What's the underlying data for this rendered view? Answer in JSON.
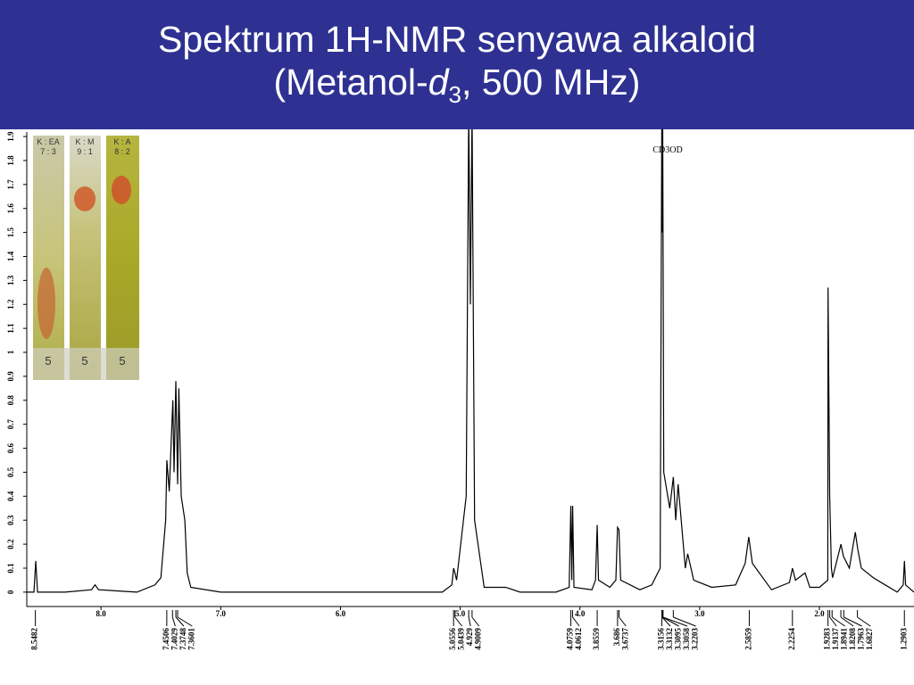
{
  "header": {
    "title_line1": "Spektrum 1H-NMR senyawa alkaloid",
    "title_line2_before": "(Metanol-",
    "title_line2_italic": "d",
    "title_line2_sub": "3",
    "title_line2_after": ", 500 MHz)"
  },
  "tlc": {
    "strips": [
      {
        "eluent": "K : EA",
        "ratio": "7 : 3",
        "number": "5"
      },
      {
        "eluent": "K : M",
        "ratio": "9 : 1",
        "number": "5"
      },
      {
        "eluent": "K : A",
        "ratio": "8 : 2",
        "number": "5"
      }
    ]
  },
  "chart_data": {
    "type": "line",
    "annotation": "CD3OD",
    "x": [
      8.62,
      8.56,
      8.545,
      8.53,
      8.3,
      8.08,
      8.05,
      8.02,
      7.7,
      7.55,
      7.5,
      7.46,
      7.45,
      7.43,
      7.4,
      7.39,
      7.375,
      7.36,
      7.35,
      7.33,
      7.3,
      7.28,
      7.25,
      7.0,
      6.5,
      6.0,
      5.5,
      5.15,
      5.07,
      5.055,
      5.044,
      5.03,
      4.95,
      4.929,
      4.915,
      4.901,
      4.88,
      4.8,
      4.62,
      4.5,
      4.2,
      4.09,
      4.076,
      4.068,
      4.061,
      4.05,
      3.9,
      3.87,
      3.856,
      3.845,
      3.75,
      3.7,
      3.686,
      3.674,
      3.66,
      3.5,
      3.4,
      3.33,
      3.316,
      3.313,
      3.309,
      3.3,
      3.25,
      3.22,
      3.2,
      3.18,
      3.12,
      3.1,
      3.05,
      2.9,
      2.7,
      2.62,
      2.59,
      2.56,
      2.4,
      2.25,
      2.225,
      2.2,
      2.12,
      2.08,
      2.0,
      1.93,
      1.928,
      1.914,
      1.9,
      1.89,
      1.82,
      1.8,
      1.75,
      1.7,
      1.68,
      1.65,
      1.55,
      1.45,
      1.35,
      1.3,
      1.29,
      1.28,
      1.21
    ],
    "series": [
      {
        "color": "#000000",
        "values": [
          0.0,
          0.0,
          0.13,
          0.0,
          0.0,
          0.01,
          0.03,
          0.01,
          0.0,
          0.03,
          0.06,
          0.3,
          0.55,
          0.42,
          0.8,
          0.5,
          0.88,
          0.45,
          0.85,
          0.4,
          0.3,
          0.08,
          0.02,
          0.0,
          0.0,
          0.0,
          0.0,
          0.0,
          0.03,
          0.1,
          0.08,
          0.05,
          0.4,
          2.0,
          1.2,
          2.0,
          0.3,
          0.02,
          0.02,
          0.0,
          0.0,
          0.02,
          0.36,
          0.05,
          0.36,
          0.02,
          0.01,
          0.05,
          0.28,
          0.05,
          0.02,
          0.05,
          0.27,
          0.26,
          0.05,
          0.01,
          0.03,
          0.1,
          2.0,
          1.5,
          2.0,
          0.5,
          0.35,
          0.48,
          0.3,
          0.45,
          0.1,
          0.16,
          0.05,
          0.02,
          0.03,
          0.12,
          0.23,
          0.12,
          0.01,
          0.04,
          0.1,
          0.05,
          0.08,
          0.02,
          0.02,
          0.05,
          1.27,
          0.4,
          0.1,
          0.06,
          0.2,
          0.15,
          0.1,
          0.25,
          0.18,
          0.1,
          0.06,
          0.03,
          0.0,
          0.03,
          0.13,
          0.03,
          0.0
        ]
      }
    ],
    "xlim": [
      8.62,
      1.21
    ],
    "xticks": [
      {
        "value": 8,
        "label": "8.0"
      },
      {
        "value": 7,
        "label": "7.0"
      },
      {
        "value": 6,
        "label": "6.0"
      },
      {
        "value": 5,
        "label": "5.0"
      },
      {
        "value": 4,
        "label": "4.0"
      },
      {
        "value": 3,
        "label": "3.0"
      },
      {
        "value": 2,
        "label": "2.0"
      }
    ],
    "ylim": [
      -0.06,
      1.93
    ],
    "yticks": [
      0,
      0.1,
      0.2,
      0.3,
      0.4,
      0.5,
      0.6,
      0.7,
      0.8,
      0.9,
      1.0,
      1.1,
      1.2,
      1.3,
      1.4,
      1.5,
      1.6,
      1.7,
      1.8,
      1.9
    ],
    "peak_labels": [
      8.5482,
      7.4506,
      7.4029,
      7.3748,
      7.3601,
      5.0556,
      5.0439,
      4.929,
      4.9009,
      4.0759,
      4.0612,
      3.8559,
      3.686,
      3.6737,
      3.3156,
      3.3132,
      3.3095,
      3.3058,
      3.2203,
      2.5859,
      2.2254,
      1.9283,
      1.9137,
      1.8941,
      1.8208,
      1.7963,
      1.6827,
      1.2903
    ]
  }
}
